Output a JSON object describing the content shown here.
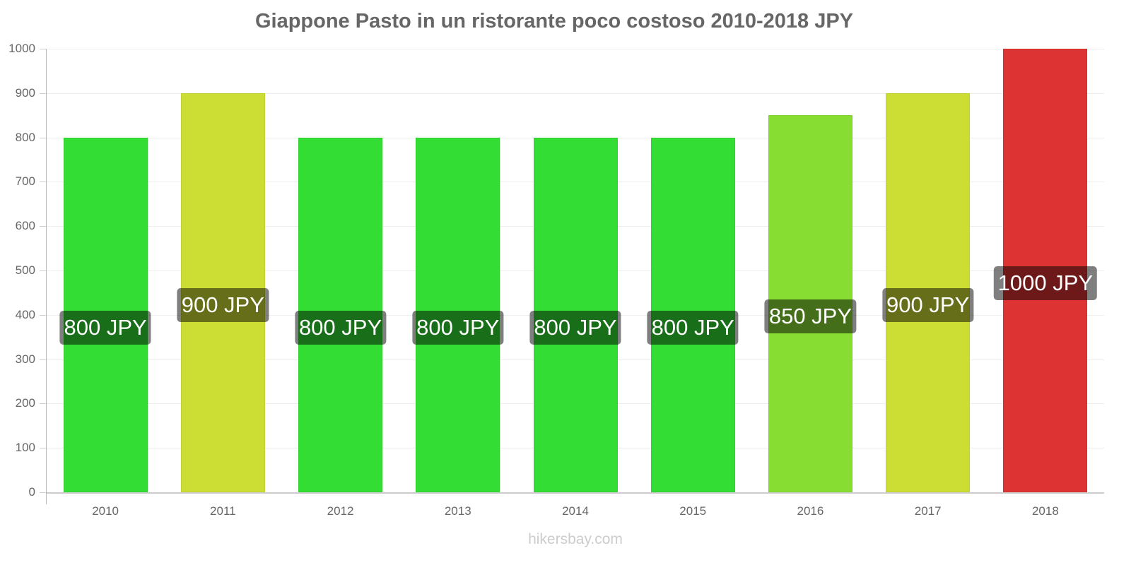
{
  "title": "Giappone Pasto in un ristorante poco costoso 2010-2018 JPY",
  "credit": "hikersbay.com",
  "y_ticks": [
    "0",
    "100",
    "200",
    "300",
    "400",
    "500",
    "600",
    "700",
    "800",
    "900",
    "1000"
  ],
  "bars": [
    {
      "year": "2010",
      "value": 800,
      "label": "800 JPY",
      "color": "#33dd33"
    },
    {
      "year": "2011",
      "value": 900,
      "label": "900 JPY",
      "color": "#ccdd33"
    },
    {
      "year": "2012",
      "value": 800,
      "label": "800 JPY",
      "color": "#33dd33"
    },
    {
      "year": "2013",
      "value": 800,
      "label": "800 JPY",
      "color": "#33dd33"
    },
    {
      "year": "2014",
      "value": 800,
      "label": "800 JPY",
      "color": "#33dd33"
    },
    {
      "year": "2015",
      "value": 800,
      "label": "800 JPY",
      "color": "#33dd33"
    },
    {
      "year": "2016",
      "value": 850,
      "label": "850 JPY",
      "color": "#88dd33"
    },
    {
      "year": "2017",
      "value": 900,
      "label": "900 JPY",
      "color": "#ccdd33"
    },
    {
      "year": "2018",
      "value": 1000,
      "label": "1000 JPY",
      "color": "#dd3333"
    }
  ],
  "chart_data": {
    "type": "bar",
    "title": "Giappone Pasto in un ristorante poco costoso 2010-2018 JPY",
    "categories": [
      "2010",
      "2011",
      "2012",
      "2013",
      "2014",
      "2015",
      "2016",
      "2017",
      "2018"
    ],
    "values": [
      800,
      900,
      800,
      800,
      800,
      800,
      850,
      900,
      1000
    ],
    "data_labels": [
      "800 JPY",
      "900 JPY",
      "800 JPY",
      "800 JPY",
      "800 JPY",
      "800 JPY",
      "850 JPY",
      "900 JPY",
      "1000 JPY"
    ],
    "xlabel": "",
    "ylabel": "",
    "ylim": [
      0,
      1000
    ],
    "yticks": [
      0,
      100,
      200,
      300,
      400,
      500,
      600,
      700,
      800,
      900,
      1000
    ],
    "grid": true,
    "legend": null,
    "source": "hikersbay.com"
  }
}
